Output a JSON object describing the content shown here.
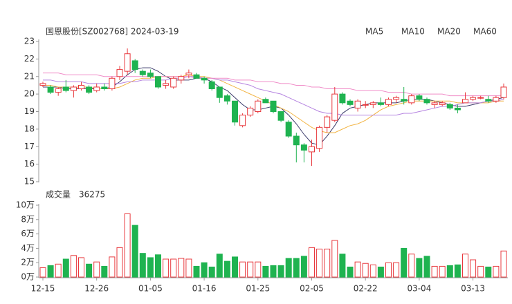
{
  "chart_data": [
    {
      "type": "candlestick",
      "title": "国恩股份[SZ002768] 2024-03-19",
      "open": [
        20.5,
        20.4,
        20.1,
        20.4,
        20.2,
        20.3,
        20.4,
        20.2,
        20.4,
        20.3,
        21.0,
        21.3,
        21.9,
        21.3,
        21.2,
        21.0,
        20.5,
        20.4,
        20.8,
        21.1,
        21.1,
        20.9,
        20.7,
        20.4,
        19.9,
        19.6,
        18.2,
        18.8,
        19.0,
        19.7,
        19.6,
        19.0,
        18.4,
        17.6,
        17.1,
        16.7,
        16.9,
        18.1,
        18.5,
        20.0,
        19.6,
        19.2,
        19.4,
        19.4,
        19.5,
        19.4,
        19.7,
        19.7,
        19.5,
        19.9,
        19.7,
        19.4,
        19.4,
        19.4,
        19.2,
        19.5,
        19.7,
        19.8,
        19.7,
        19.6,
        19.8
      ],
      "high": [
        20.7,
        20.5,
        20.4,
        20.8,
        20.5,
        20.7,
        20.5,
        20.6,
        20.6,
        21.0,
        21.6,
        22.6,
        22.0,
        21.4,
        21.4,
        21.0,
        20.8,
        21.0,
        21.1,
        21.4,
        21.2,
        21.0,
        20.8,
        20.4,
        20.0,
        19.6,
        18.9,
        19.3,
        19.7,
        19.8,
        19.6,
        19.0,
        18.5,
        17.8,
        17.2,
        17.4,
        18.2,
        18.8,
        20.4,
        20.1,
        19.7,
        19.7,
        19.6,
        19.6,
        19.8,
        19.8,
        19.9,
        20.4,
        20.0,
        20.0,
        19.8,
        19.6,
        19.6,
        19.5,
        19.4,
        20.1,
        19.9,
        19.9,
        19.9,
        19.9,
        20.6
      ],
      "low": [
        20.4,
        20.0,
        19.9,
        20.1,
        19.8,
        20.2,
        20.0,
        20.1,
        20.2,
        20.2,
        20.8,
        21.1,
        21.2,
        21.0,
        20.9,
        20.3,
        20.3,
        20.3,
        20.6,
        20.9,
        20.9,
        20.6,
        20.2,
        19.5,
        19.4,
        18.2,
        18.1,
        18.7,
        18.9,
        19.5,
        18.9,
        18.4,
        17.5,
        16.1,
        16.1,
        15.9,
        16.7,
        17.8,
        18.4,
        19.4,
        19.3,
        19.0,
        19.2,
        19.2,
        19.3,
        19.3,
        19.5,
        19.4,
        19.4,
        19.6,
        19.4,
        19.2,
        19.3,
        19.1,
        18.9,
        19.5,
        19.6,
        19.7,
        19.5,
        19.5,
        19.7
      ],
      "close": [
        20.6,
        20.1,
        20.3,
        20.2,
        20.4,
        20.5,
        20.1,
        20.4,
        20.3,
        20.9,
        21.4,
        22.3,
        21.4,
        21.1,
        21.0,
        20.4,
        20.6,
        20.9,
        21.0,
        21.2,
        20.9,
        20.8,
        20.3,
        19.8,
        19.6,
        18.4,
        18.8,
        19.2,
        19.6,
        19.5,
        19.0,
        18.5,
        17.6,
        17.1,
        16.8,
        17.0,
        18.1,
        18.7,
        20.0,
        19.5,
        19.4,
        19.6,
        19.4,
        19.5,
        19.4,
        19.7,
        19.8,
        19.6,
        19.9,
        19.7,
        19.5,
        19.5,
        19.5,
        19.2,
        19.1,
        19.7,
        19.8,
        19.8,
        19.6,
        19.8,
        20.4
      ],
      "ylim": [
        15,
        23
      ],
      "yticks": [
        15,
        16,
        17,
        18,
        19,
        20,
        21,
        22,
        23
      ],
      "up_color": "#e8383d",
      "down_color": "#1fb350",
      "series": [
        {
          "name": "MA5",
          "color": "#3b3b6b",
          "values": [
            20.4,
            20.4,
            20.4,
            20.3,
            20.3,
            20.3,
            20.3,
            20.3,
            20.3,
            20.4,
            20.7,
            21.1,
            21.4,
            21.5,
            21.5,
            21.3,
            21.0,
            20.8,
            20.8,
            20.8,
            20.9,
            20.9,
            20.7,
            20.4,
            20.2,
            19.8,
            19.4,
            19.1,
            19.1,
            19.2,
            19.3,
            19.2,
            18.8,
            18.3,
            17.7,
            17.2,
            17.1,
            17.6,
            18.2,
            18.9,
            19.2,
            19.3,
            19.4,
            19.5,
            19.5,
            19.5,
            19.5,
            19.6,
            19.7,
            19.7,
            19.7,
            19.6,
            19.5,
            19.4,
            19.3,
            19.3,
            19.4,
            19.5,
            19.6,
            19.7,
            19.8
          ]
        },
        {
          "name": "MA10",
          "color": "#f2b443",
          "values": [
            20.5,
            20.5,
            20.4,
            20.4,
            20.4,
            20.4,
            20.4,
            20.3,
            20.3,
            20.3,
            20.4,
            20.6,
            20.8,
            20.9,
            20.9,
            21.0,
            21.0,
            21.0,
            21.0,
            21.1,
            21.0,
            21.0,
            20.9,
            20.8,
            20.6,
            20.4,
            20.2,
            20.0,
            19.8,
            19.6,
            19.4,
            19.2,
            19.0,
            18.7,
            18.4,
            18.1,
            17.9,
            17.8,
            17.8,
            18.0,
            18.2,
            18.3,
            18.5,
            18.8,
            19.1,
            19.3,
            19.4,
            19.5,
            19.6,
            19.6,
            19.6,
            19.6,
            19.6,
            19.6,
            19.5,
            19.5,
            19.5,
            19.5,
            19.5,
            19.6,
            19.6
          ]
        },
        {
          "name": "MA20",
          "color": "#b482e0",
          "values": [
            20.8,
            20.8,
            20.7,
            20.7,
            20.7,
            20.7,
            20.6,
            20.6,
            20.6,
            20.6,
            20.6,
            20.7,
            20.7,
            20.8,
            20.8,
            20.8,
            20.8,
            20.9,
            20.9,
            21.0,
            21.0,
            20.9,
            20.9,
            20.8,
            20.8,
            20.7,
            20.6,
            20.5,
            20.3,
            20.2,
            20.1,
            20.0,
            19.8,
            19.6,
            19.4,
            19.2,
            19.0,
            18.9,
            18.9,
            18.8,
            18.8,
            18.8,
            18.8,
            18.8,
            18.8,
            18.8,
            18.8,
            18.9,
            18.9,
            19.0,
            19.1,
            19.2,
            19.3,
            19.3,
            19.4,
            19.5,
            19.5,
            19.5,
            19.6,
            19.6,
            19.7
          ]
        },
        {
          "name": "MA60",
          "color": "#f08cc8",
          "values": [
            21.2,
            21.2,
            21.2,
            21.1,
            21.1,
            21.1,
            21.1,
            21.1,
            21.0,
            21.0,
            21.0,
            21.0,
            21.0,
            21.0,
            21.0,
            21.0,
            21.0,
            21.0,
            21.0,
            21.0,
            20.9,
            20.9,
            20.9,
            20.9,
            20.9,
            20.8,
            20.8,
            20.8,
            20.7,
            20.7,
            20.7,
            20.6,
            20.6,
            20.5,
            20.5,
            20.4,
            20.4,
            20.3,
            20.3,
            20.3,
            20.3,
            20.2,
            20.2,
            20.2,
            20.2,
            20.1,
            20.1,
            20.1,
            20.0,
            20.0,
            20.0,
            20.0,
            20.0,
            19.9,
            19.9,
            19.9,
            19.9,
            19.9,
            19.9,
            19.9,
            19.9
          ]
        }
      ]
    },
    {
      "type": "bar",
      "title": "成交量",
      "current": 36275,
      "categories": [
        "12-15",
        null,
        null,
        null,
        null,
        null,
        null,
        "12-26",
        null,
        null,
        null,
        null,
        null,
        null,
        "01-05",
        null,
        null,
        null,
        null,
        null,
        null,
        "01-16",
        null,
        null,
        null,
        null,
        null,
        null,
        "01-25",
        null,
        null,
        null,
        null,
        null,
        null,
        "02-05",
        null,
        null,
        null,
        null,
        null,
        null,
        "02-22",
        null,
        null,
        null,
        null,
        null,
        null,
        "03-04",
        null,
        null,
        null,
        null,
        null,
        null,
        "03-13",
        null,
        null,
        null,
        null
      ],
      "values": [
        1.3,
        1.6,
        1.8,
        2.5,
        3.0,
        2.7,
        1.8,
        2.1,
        1.5,
        2.8,
        4.1,
        8.8,
        7.2,
        3.3,
        2.7,
        3.1,
        2.5,
        2.5,
        2.6,
        2.5,
        1.5,
        2.0,
        1.4,
        3.2,
        2.2,
        2.8,
        2.1,
        2.1,
        2.1,
        1.5,
        1.6,
        1.6,
        2.6,
        2.6,
        2.9,
        4.1,
        3.9,
        3.9,
        5.1,
        3.2,
        1.4,
        2.1,
        1.9,
        1.7,
        1.4,
        2.0,
        2.0,
        4.0,
        3.2,
        2.6,
        2.9,
        1.5,
        1.5,
        1.6,
        1.7,
        3.2,
        2.4,
        1.5,
        1.4,
        1.5,
        3.6275
      ],
      "ylim": [
        0,
        10
      ],
      "yticks": [
        {
          "value": 0,
          "label": "0万"
        },
        {
          "value": 2,
          "label": "2万"
        },
        {
          "value": 4,
          "label": "4万"
        },
        {
          "value": 6,
          "label": "6万"
        },
        {
          "value": 8,
          "label": "8万"
        },
        {
          "value": 10,
          "label": "10万"
        }
      ]
    }
  ]
}
